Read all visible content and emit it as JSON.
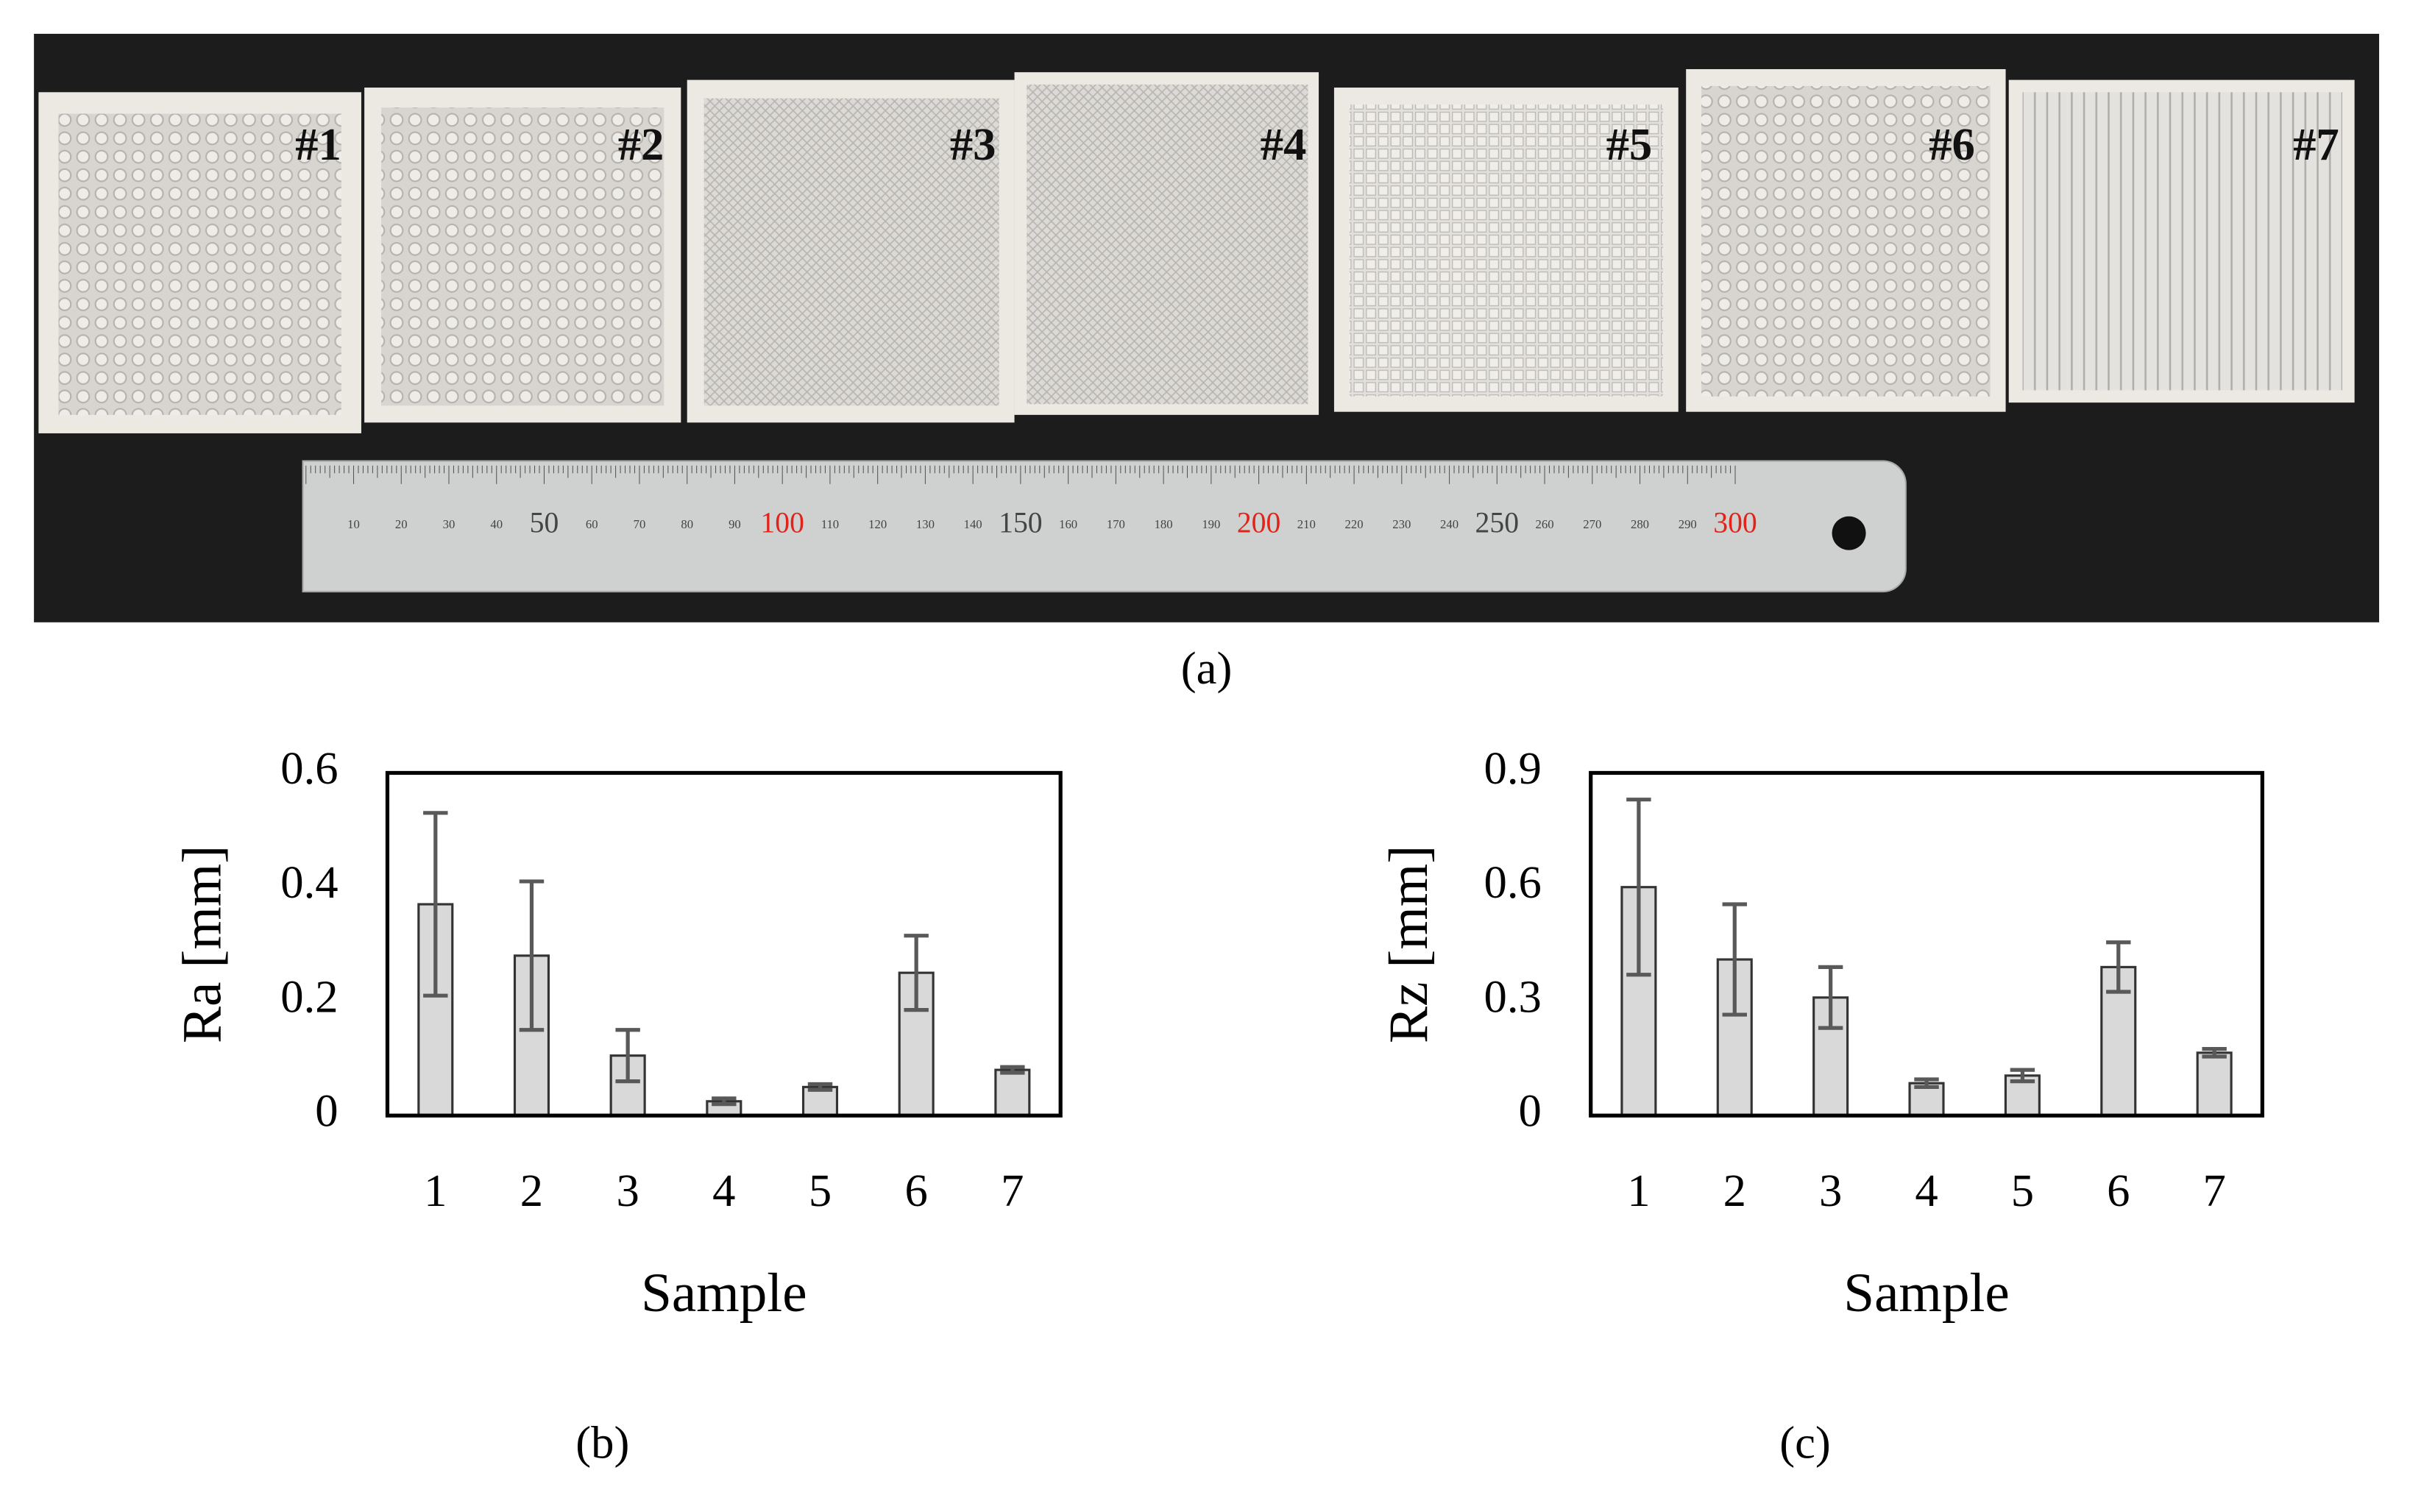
{
  "photo": {
    "labels": [
      "#1",
      "#2",
      "#3",
      "#4",
      "#5",
      "#6",
      "#7"
    ],
    "ruler_labels": [
      10,
      20,
      30,
      40,
      50,
      60,
      70,
      80,
      90,
      100,
      110,
      120,
      130,
      140,
      150,
      160,
      170,
      180,
      190,
      200,
      210,
      220,
      230,
      240,
      250,
      260,
      270,
      280,
      290,
      300
    ],
    "caption": "(a)"
  },
  "chart_data": [
    {
      "type": "bar",
      "caption": "(b)",
      "y_label": "Ra [mm]",
      "x_label": "Sample",
      "categories": [
        "1",
        "2",
        "3",
        "4",
        "5",
        "6",
        "7"
      ],
      "values": [
        0.37,
        0.28,
        0.105,
        0.025,
        0.05,
        0.25,
        0.08
      ],
      "errors": [
        0.16,
        0.13,
        0.045,
        0.005,
        0.005,
        0.065,
        0.005
      ],
      "color": "#d9d9d9",
      "error_color": "#595959",
      "ylim": [
        0,
        0.6
      ],
      "yticks": [
        0,
        0.2,
        0.4,
        0.6
      ],
      "grid": false
    },
    {
      "type": "bar",
      "caption": "(c)",
      "y_label": "Rz [mm]",
      "x_label": "Sample",
      "categories": [
        "1",
        "2",
        "3",
        "4",
        "5",
        "6",
        "7"
      ],
      "values": [
        0.6,
        0.41,
        0.31,
        0.085,
        0.105,
        0.39,
        0.165
      ],
      "errors": [
        0.23,
        0.145,
        0.08,
        0.01,
        0.015,
        0.065,
        0.01
      ],
      "color": "#d9d9d9",
      "error_color": "#595959",
      "ylim": [
        0,
        0.9
      ],
      "yticks": [
        0,
        0.3,
        0.6,
        0.9
      ],
      "grid": false
    }
  ]
}
